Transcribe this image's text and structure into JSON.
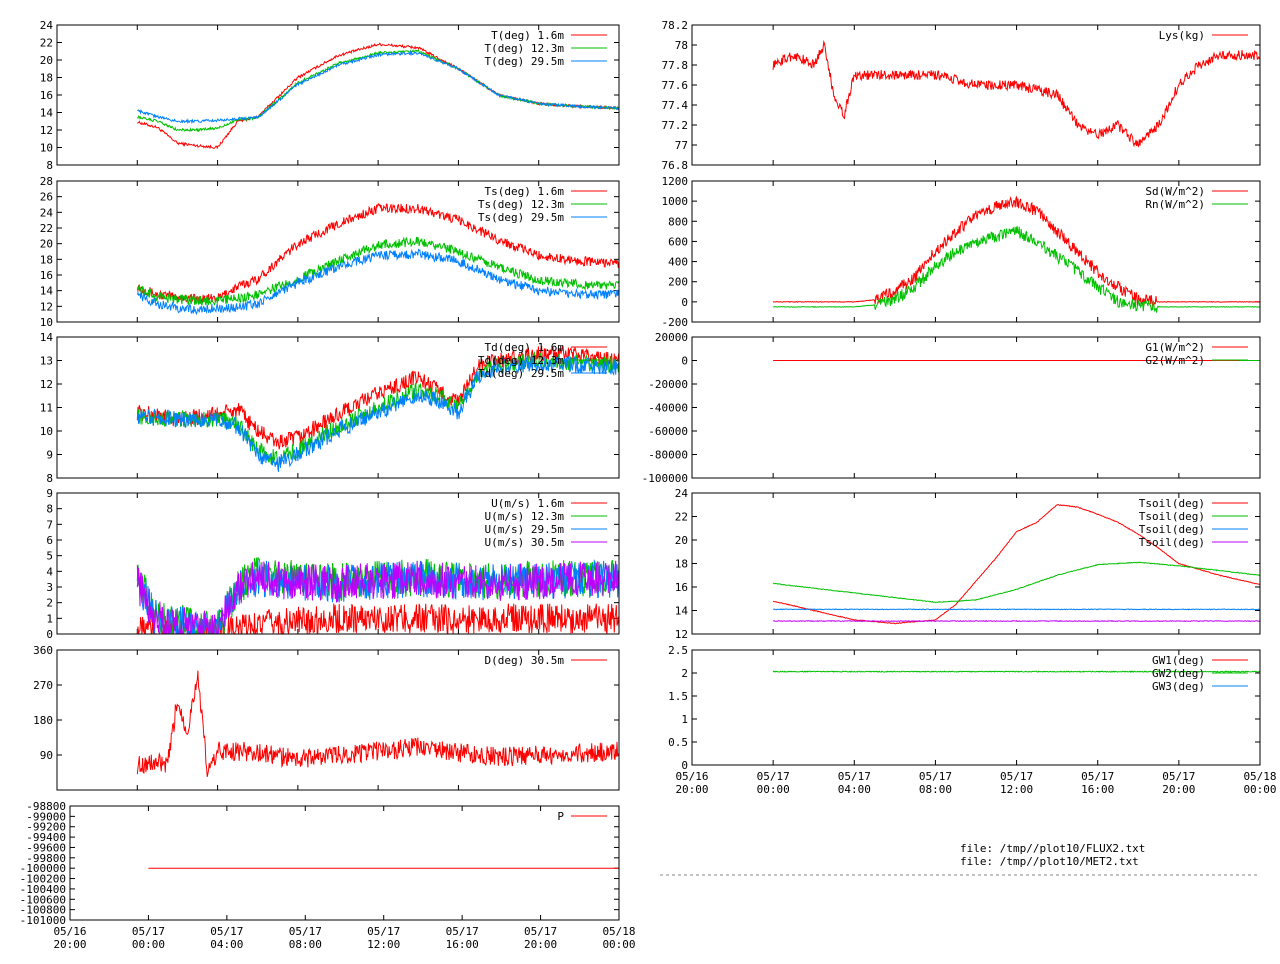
{
  "colors": {
    "red": "#ff0000",
    "green": "#00c000",
    "blue": "#0080ff",
    "purple": "#c000ff"
  },
  "time_ticks": {
    "day": [
      "05/16",
      "05/17",
      "05/17",
      "05/17",
      "05/17",
      "05/17",
      "05/17",
      "05/18"
    ],
    "time": [
      "20:00",
      "00:00",
      "04:00",
      "08:00",
      "12:00",
      "16:00",
      "20:00",
      "00:00"
    ]
  },
  "file_labels": [
    "file: /tmp//plot10/FLUX2.txt",
    "file: /tmp//plot10/MET2.txt"
  ],
  "chart_data": [
    {
      "id": "T",
      "type": "line",
      "xlabel": "",
      "ylabel": "",
      "xlim": [
        -4,
        24
      ],
      "ylim": [
        8,
        24
      ],
      "yticks": [
        "8",
        "10",
        "12",
        "14",
        "16",
        "18",
        "20",
        "22",
        "24"
      ],
      "series": [
        {
          "name": "T(deg)  1.6m",
          "color": "#ff0000",
          "x": [
            0,
            1,
            2,
            3,
            4,
            5,
            6,
            8,
            10,
            12,
            14,
            16,
            18,
            20,
            22,
            24
          ],
          "y": [
            12.9,
            12.3,
            10.5,
            10.2,
            10.0,
            13.0,
            13.5,
            18.0,
            20.5,
            21.8,
            21.4,
            19.0,
            16.0,
            15.0,
            14.7,
            14.5
          ]
        },
        {
          "name": "T(deg) 12.3m",
          "color": "#00c000",
          "x": [
            0,
            1,
            2,
            3,
            4,
            5,
            6,
            8,
            10,
            12,
            14,
            16,
            18,
            20,
            22,
            24
          ],
          "y": [
            13.5,
            13.0,
            12.0,
            12.0,
            12.2,
            13.2,
            13.4,
            17.4,
            19.6,
            20.8,
            21.0,
            19.0,
            16.0,
            15.0,
            14.7,
            14.5
          ]
        },
        {
          "name": "T(deg) 29.5m",
          "color": "#0080ff",
          "x": [
            0,
            1,
            2,
            3,
            4,
            5,
            6,
            8,
            10,
            12,
            14,
            16,
            18,
            20,
            22,
            24
          ],
          "y": [
            14.2,
            13.5,
            13.0,
            13.0,
            13.1,
            13.3,
            13.4,
            17.2,
            19.4,
            20.6,
            20.8,
            19.0,
            16.0,
            15.0,
            14.7,
            14.5
          ]
        }
      ]
    },
    {
      "id": "Ts",
      "type": "line",
      "xlabel": "",
      "ylabel": "",
      "xlim": [
        -4,
        24
      ],
      "ylim": [
        10,
        28
      ],
      "yticks": [
        "10",
        "12",
        "14",
        "16",
        "18",
        "20",
        "22",
        "24",
        "26",
        "28"
      ],
      "series": [
        {
          "name": "Ts(deg)  1.6m",
          "color": "#ff0000",
          "x": [
            0,
            1,
            2,
            3,
            4,
            5,
            6,
            8,
            10,
            12,
            14,
            16,
            18,
            20,
            22,
            24
          ],
          "y": [
            14.5,
            13.5,
            13.2,
            13.0,
            13.0,
            14.5,
            15.5,
            20.0,
            22.5,
            24.5,
            24.5,
            23.0,
            20.5,
            18.5,
            17.8,
            17.5
          ]
        },
        {
          "name": "Ts(deg) 12.3m",
          "color": "#00c000",
          "x": [
            0,
            1,
            2,
            3,
            4,
            5,
            6,
            8,
            10,
            12,
            14,
            16,
            18,
            20,
            22,
            24
          ],
          "y": [
            14.3,
            13.2,
            12.9,
            12.7,
            12.8,
            13.0,
            13.5,
            15.5,
            17.8,
            19.8,
            20.3,
            19.0,
            17.0,
            15.3,
            14.8,
            14.7
          ]
        },
        {
          "name": "Ts(deg) 29.5m",
          "color": "#0080ff",
          "x": [
            0,
            1,
            2,
            3,
            4,
            5,
            6,
            8,
            10,
            12,
            14,
            16,
            18,
            20,
            22,
            24
          ],
          "y": [
            13.5,
            12.3,
            11.8,
            11.6,
            11.8,
            11.9,
            12.3,
            15.0,
            17.0,
            18.5,
            18.7,
            17.8,
            15.5,
            14.0,
            13.6,
            13.5
          ]
        }
      ]
    },
    {
      "id": "Td",
      "type": "line",
      "xlabel": "",
      "ylabel": "",
      "xlim": [
        -4,
        24
      ],
      "ylim": [
        8,
        14
      ],
      "yticks": [
        "8",
        "9",
        "10",
        "11",
        "12",
        "13",
        "14"
      ],
      "series": [
        {
          "name": "Td(deg)  1.6m",
          "color": "#ff0000",
          "x": [
            0,
            2,
            4,
            5,
            6,
            7,
            8,
            10,
            12,
            14,
            15,
            16,
            17,
            18,
            20,
            22,
            24
          ],
          "y": [
            10.8,
            10.5,
            10.7,
            10.9,
            10.0,
            9.5,
            9.7,
            10.7,
            11.6,
            12.3,
            11.7,
            11.2,
            12.8,
            13.0,
            13.3,
            13.2,
            13.0
          ]
        },
        {
          "name": "Td(deg) 12.3m",
          "color": "#00c000",
          "x": [
            0,
            2,
            4,
            5,
            6,
            7,
            8,
            10,
            12,
            14,
            15,
            16,
            17,
            18,
            20,
            22,
            24
          ],
          "y": [
            10.6,
            10.5,
            10.5,
            10.3,
            9.2,
            8.8,
            9.2,
            10.2,
            11.0,
            11.8,
            11.5,
            11.0,
            12.5,
            12.8,
            13.0,
            12.9,
            12.8
          ]
        },
        {
          "name": "Td(deg) 29.5m",
          "color": "#0080ff",
          "x": [
            0,
            2,
            4,
            5,
            6,
            7,
            8,
            10,
            12,
            14,
            15,
            16,
            17,
            18,
            20,
            22,
            24
          ],
          "y": [
            10.6,
            10.5,
            10.5,
            10.2,
            9.0,
            8.6,
            9.0,
            10.0,
            10.8,
            11.6,
            11.3,
            10.8,
            12.4,
            12.7,
            12.9,
            12.8,
            12.7
          ]
        }
      ]
    },
    {
      "id": "U",
      "type": "line",
      "xlabel": "",
      "ylabel": "",
      "xlim": [
        -4,
        24
      ],
      "ylim": [
        0,
        9
      ],
      "yticks": [
        "0",
        "1",
        "2",
        "3",
        "4",
        "5",
        "6",
        "7",
        "8",
        "9"
      ],
      "series": [
        {
          "name": "U(m/s)  1.6m",
          "color": "#ff0000",
          "x": [
            0,
            1,
            2,
            3,
            4,
            5,
            6,
            8,
            10,
            12,
            14,
            16,
            18,
            20,
            22,
            24
          ],
          "y": [
            0.3,
            0.2,
            0.1,
            0.1,
            0.1,
            0.2,
            0.6,
            0.8,
            1.0,
            1.0,
            1.0,
            0.9,
            1.0,
            1.0,
            1.0,
            1.0
          ]
        },
        {
          "name": "U(m/s) 12.3m",
          "color": "#00c000",
          "x": [
            0,
            1,
            2,
            3,
            4,
            5,
            6,
            8,
            10,
            12,
            14,
            16,
            18,
            20,
            22,
            24
          ],
          "y": [
            3.5,
            1.0,
            0.8,
            0.3,
            0.3,
            3.0,
            3.8,
            3.5,
            3.3,
            3.5,
            3.6,
            3.5,
            3.4,
            3.5,
            3.6,
            3.6
          ]
        },
        {
          "name": "U(m/s) 29.5m",
          "color": "#0080ff",
          "x": [
            0,
            1,
            2,
            3,
            4,
            5,
            6,
            8,
            10,
            12,
            14,
            16,
            18,
            20,
            22,
            24
          ],
          "y": [
            3.2,
            0.9,
            0.7,
            0.3,
            0.3,
            2.9,
            3.6,
            3.3,
            3.2,
            3.4,
            3.5,
            3.4,
            3.3,
            3.4,
            3.5,
            3.5
          ]
        },
        {
          "name": "U(m/s) 30.5m",
          "color": "#c000ff",
          "x": [
            0,
            1,
            2,
            3,
            4,
            5,
            6,
            8,
            10,
            12,
            14,
            16,
            18,
            20,
            22,
            24
          ],
          "y": [
            3.2,
            0.9,
            0.7,
            0.3,
            0.3,
            2.9,
            3.6,
            3.3,
            3.2,
            3.4,
            3.5,
            3.4,
            3.3,
            3.4,
            3.5,
            3.5
          ]
        }
      ]
    },
    {
      "id": "D",
      "type": "line",
      "xlabel": "",
      "ylabel": "",
      "xlim": [
        -4,
        24
      ],
      "ylim": [
        0,
        360
      ],
      "yticks": [
        "90",
        "180",
        "270",
        "360"
      ],
      "ytick_values": [
        90,
        180,
        270,
        360
      ],
      "series": [
        {
          "name": "D(deg)  30.5m",
          "color": "#ff0000",
          "x": [
            0,
            1,
            1.5,
            2,
            2.5,
            3,
            3.5,
            4,
            5,
            6,
            8,
            10,
            12,
            14,
            16,
            18,
            20,
            22,
            24
          ],
          "y": [
            65,
            70,
            60,
            230,
            150,
            300,
            40,
            100,
            100,
            95,
            80,
            90,
            100,
            110,
            95,
            85,
            90,
            95,
            100
          ]
        }
      ]
    },
    {
      "id": "P",
      "type": "line",
      "xlabel": "",
      "ylabel": "",
      "xlim": [
        -4,
        24
      ],
      "ylim": [
        -101000,
        -98800
      ],
      "yticks": [
        "-101000",
        "-100800",
        "-100600",
        "-100400",
        "-100200",
        "-100000",
        "-99800",
        "-99600",
        "-99400",
        "-99200",
        "-99000",
        "-98800"
      ],
      "series": [
        {
          "name": "P",
          "color": "#ff0000",
          "x": [
            0,
            24
          ],
          "y": [
            -100000,
            -100000
          ]
        }
      ]
    },
    {
      "id": "Lys",
      "type": "line",
      "xlabel": "",
      "ylabel": "",
      "xlim": [
        -4,
        24
      ],
      "ylim": [
        76.8,
        78.2
      ],
      "yticks": [
        "76.8",
        "77",
        "77.2",
        "77.4",
        "77.6",
        "77.8",
        "78",
        "78.2"
      ],
      "series": [
        {
          "name": "Lys(kg)",
          "color": "#ff0000",
          "x": [
            0,
            1,
            2,
            2.5,
            3,
            3.5,
            4,
            5,
            6,
            8,
            10,
            12,
            14,
            15,
            16,
            17,
            18,
            19,
            20,
            21,
            22,
            23,
            24
          ],
          "y": [
            77.8,
            77.9,
            77.8,
            78.0,
            77.5,
            77.3,
            77.7,
            77.7,
            77.7,
            77.7,
            77.6,
            77.6,
            77.5,
            77.2,
            77.1,
            77.2,
            77.0,
            77.2,
            77.6,
            77.8,
            77.9,
            77.9,
            77.9
          ]
        }
      ]
    },
    {
      "id": "Rad",
      "type": "line",
      "xlabel": "",
      "ylabel": "",
      "xlim": [
        -4,
        24
      ],
      "ylim": [
        -200,
        1200
      ],
      "yticks": [
        "-200",
        "0",
        "200",
        "400",
        "600",
        "800",
        "1000",
        "1200"
      ],
      "series": [
        {
          "name": "Sd(W/m^2)",
          "color": "#ff0000",
          "x": [
            0,
            4,
            5,
            6,
            7,
            8,
            9,
            10,
            11,
            12,
            13,
            14,
            15,
            16,
            17,
            18,
            19,
            20,
            24
          ],
          "y": [
            0,
            0,
            20,
            100,
            250,
            500,
            700,
            850,
            950,
            1000,
            900,
            700,
            500,
            300,
            150,
            20,
            0,
            0,
            0
          ]
        },
        {
          "name": "Rn(W/m^2)",
          "color": "#00c000",
          "x": [
            0,
            4,
            5,
            6,
            7,
            8,
            9,
            10,
            11,
            12,
            13,
            14,
            15,
            16,
            17,
            18,
            19,
            20,
            24
          ],
          "y": [
            -50,
            -50,
            -30,
            30,
            150,
            350,
            500,
            600,
            650,
            700,
            600,
            450,
            300,
            150,
            0,
            -40,
            -50,
            -50,
            -50
          ]
        }
      ]
    },
    {
      "id": "G",
      "type": "line",
      "xlabel": "",
      "ylabel": "",
      "xlim": [
        -4,
        24
      ],
      "ylim": [
        -100000,
        20000
      ],
      "yticks": [
        "-100000",
        "-80000",
        "-60000",
        "-40000",
        "-20000",
        "0",
        "20000"
      ],
      "series": [
        {
          "name": "G1(W/m^2)",
          "color": "#ff0000",
          "x": [
            0,
            24
          ],
          "y": [
            0,
            0
          ]
        },
        {
          "name": "G2(W/m^2)",
          "color": "#00c000",
          "x": [
            23,
            24
          ],
          "y": [
            0,
            0
          ]
        }
      ]
    },
    {
      "id": "Tsoil",
      "type": "line",
      "xlabel": "",
      "ylabel": "",
      "xlim": [
        -4,
        24
      ],
      "ylim": [
        12,
        24
      ],
      "yticks": [
        "12",
        "14",
        "16",
        "18",
        "20",
        "22",
        "24"
      ],
      "series": [
        {
          "name": "Tsoil(deg)",
          "color": "#ff0000",
          "x": [
            0,
            2,
            4,
            6,
            8,
            9,
            10,
            11,
            12,
            13,
            14,
            15,
            16,
            17,
            18,
            19,
            20,
            22,
            24
          ],
          "y": [
            14.8,
            14.0,
            13.2,
            12.9,
            13.2,
            14.5,
            16.5,
            18.5,
            20.7,
            21.5,
            23.0,
            22.8,
            22.2,
            21.5,
            20.5,
            19.3,
            18.0,
            17.0,
            16.2
          ]
        },
        {
          "name": "Tsoil(deg)",
          "color": "#00c000",
          "x": [
            0,
            4,
            8,
            10,
            12,
            14,
            16,
            18,
            20,
            22,
            24
          ],
          "y": [
            16.3,
            15.5,
            14.7,
            14.9,
            15.8,
            17.0,
            17.9,
            18.1,
            17.8,
            17.4,
            17.0
          ]
        },
        {
          "name": "Tsoil(deg)",
          "color": "#0080ff",
          "x": [
            0,
            24
          ],
          "y": [
            14.1,
            14.1
          ]
        },
        {
          "name": "Tsoil(deg)",
          "color": "#c000ff",
          "x": [
            0,
            24
          ],
          "y": [
            13.1,
            13.1
          ]
        }
      ]
    },
    {
      "id": "GW",
      "type": "line",
      "xlabel": "",
      "ylabel": "",
      "xlim": [
        -4,
        24
      ],
      "ylim": [
        0,
        2.5
      ],
      "yticks": [
        "0",
        "0.5",
        "1",
        "1.5",
        "2",
        "2.5"
      ],
      "series": [
        {
          "name": "GW1(deg)",
          "color": "#ff0000",
          "x": [],
          "y": []
        },
        {
          "name": "GW2(deg)",
          "color": "#00c000",
          "x": [
            0,
            24
          ],
          "y": [
            2.03,
            2.03
          ]
        },
        {
          "name": "GW3(deg)",
          "color": "#0080ff",
          "x": [],
          "y": []
        }
      ]
    }
  ]
}
